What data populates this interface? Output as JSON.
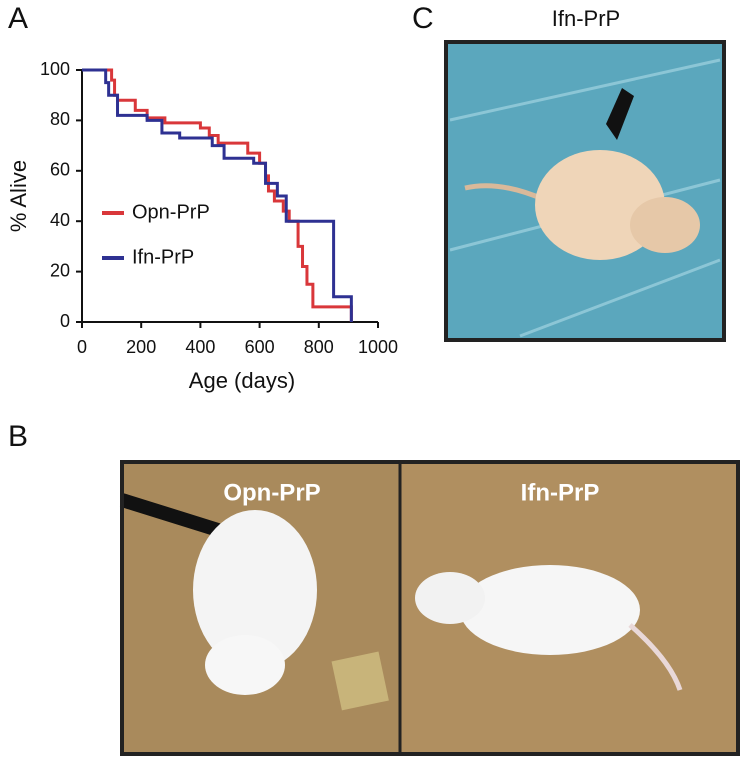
{
  "chart_data": {
    "type": "step",
    "x_label": "Age (days)",
    "y_label": "% Alive",
    "xlim": [
      0,
      1000
    ],
    "xticks": [
      0,
      200,
      400,
      600,
      800,
      1000
    ],
    "ylim": [
      0,
      100
    ],
    "yticks": [
      0,
      20,
      40,
      60,
      80,
      100
    ],
    "legend": "center-left",
    "series": [
      {
        "name": "Opn-PrP",
        "color": "#d9373a",
        "x": [
          0,
          100,
          110,
          120,
          180,
          220,
          280,
          400,
          430,
          460,
          560,
          600,
          620,
          630,
          650,
          680,
          700,
          730,
          745,
          760,
          780,
          910
        ],
        "values": [
          100,
          96,
          90,
          88,
          84,
          81,
          79,
          77,
          74,
          71,
          67,
          63,
          58,
          52,
          48,
          44,
          40,
          30,
          22,
          15,
          6,
          0
        ]
      },
      {
        "name": "Ifn-PrP",
        "color": "#2e3192",
        "x": [
          0,
          80,
          90,
          120,
          220,
          270,
          330,
          440,
          480,
          580,
          620,
          660,
          690,
          850,
          910
        ],
        "values": [
          100,
          95,
          90,
          82,
          80,
          75,
          73,
          70,
          65,
          63,
          55,
          50,
          40,
          10,
          0
        ]
      }
    ]
  },
  "panels": [
    {
      "label": "A"
    },
    {
      "label": "B",
      "photos": [
        {
          "label": "Opn-PrP"
        },
        {
          "label": "Ifn-PrP"
        }
      ]
    },
    {
      "label": "C",
      "title": "Ifn-PrP"
    }
  ]
}
